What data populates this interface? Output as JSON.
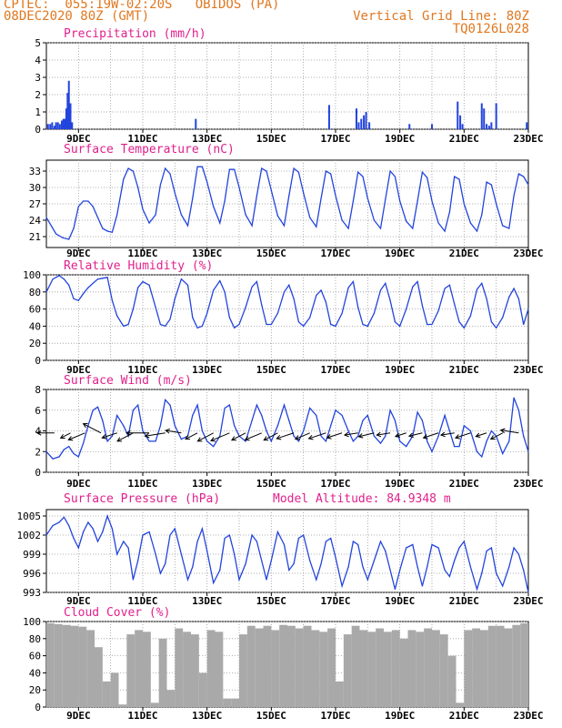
{
  "header": {
    "line1_left": "CPTEC:  055:19W-02:20S   OBIDOS (PA)",
    "line2_left": "08DEC2020 80Z (GMT)",
    "line1_right": "Vertical Grid Line: 80Z",
    "line2_right": "TQ0126L028",
    "model_altitude": "Model Altitude: 84.9348 m"
  },
  "colors": {
    "header": "#e07820",
    "panel_title": "#e0208c",
    "series_line": "#2244dd",
    "cloud_fill": "#a9a9a9",
    "wind_arrow": "#000000"
  },
  "chart_data": [
    {
      "type": "bar",
      "title": "Precipitation (mm/h)",
      "ylim": [
        0,
        5
      ],
      "yticks": [
        "0",
        "1",
        "2",
        "3",
        "4",
        "5"
      ],
      "xticks": [
        "9DEC",
        "11DEC",
        "13DEC",
        "15DEC",
        "17DEC",
        "19DEC",
        "21DEC",
        "23DEC"
      ],
      "x_range_days": [
        8.0,
        23.0
      ],
      "x": [
        8.05,
        8.12,
        8.18,
        8.25,
        8.3,
        8.36,
        8.42,
        8.48,
        8.53,
        8.58,
        8.62,
        8.66,
        8.7,
        8.75,
        8.8,
        12.65,
        16.8,
        17.65,
        17.72,
        17.8,
        17.88,
        17.95,
        18.05,
        19.3,
        20.0,
        20.8,
        20.88,
        20.95,
        21.55,
        21.62,
        21.7,
        21.78,
        21.85,
        22.0,
        22.95
      ],
      "values": [
        0.3,
        0.3,
        0.4,
        0.2,
        0.4,
        0.4,
        0.3,
        0.5,
        0.6,
        0.6,
        1.2,
        2.1,
        2.8,
        1.5,
        0.4,
        0.6,
        1.4,
        1.2,
        0.4,
        0.6,
        0.8,
        1.0,
        0.4,
        0.3,
        0.3,
        1.6,
        0.8,
        0.3,
        1.5,
        1.2,
        0.3,
        0.2,
        0.4,
        1.5,
        0.4
      ],
      "grid": true
    },
    {
      "type": "line",
      "title": "Surface Temperature (nC)",
      "ylim": [
        19,
        35
      ],
      "yticks": [
        "21",
        "24",
        "27",
        "30",
        "33"
      ],
      "xticks": [
        "9DEC",
        "11DEC",
        "13DEC",
        "15DEC",
        "17DEC",
        "19DEC",
        "21DEC",
        "23DEC"
      ],
      "x": [
        8.0,
        8.3,
        8.5,
        8.7,
        8.85,
        9.0,
        9.15,
        9.3,
        9.45,
        9.6,
        9.75,
        9.9,
        10.05,
        10.2,
        10.4,
        10.55,
        10.7,
        10.85,
        11.0,
        11.2,
        11.4,
        11.55,
        11.7,
        11.85,
        12.0,
        12.2,
        12.4,
        12.55,
        12.7,
        12.85,
        13.0,
        13.2,
        13.4,
        13.55,
        13.7,
        13.85,
        14.0,
        14.2,
        14.4,
        14.55,
        14.7,
        14.85,
        15.0,
        15.2,
        15.4,
        15.55,
        15.7,
        15.85,
        16.0,
        16.2,
        16.4,
        16.55,
        16.7,
        16.85,
        17.0,
        17.2,
        17.4,
        17.55,
        17.7,
        17.85,
        18.0,
        18.2,
        18.4,
        18.55,
        18.7,
        18.85,
        19.0,
        19.2,
        19.4,
        19.55,
        19.7,
        19.85,
        20.0,
        20.2,
        20.4,
        20.55,
        20.7,
        20.85,
        21.0,
        21.2,
        21.4,
        21.55,
        21.7,
        21.85,
        22.0,
        22.2,
        22.4,
        22.55,
        22.7,
        22.85,
        23.0
      ],
      "values": [
        24.5,
        21.5,
        20.8,
        20.5,
        22.5,
        26.5,
        27.5,
        27.5,
        26.5,
        24.5,
        22.5,
        22.0,
        21.8,
        25.0,
        31.5,
        33.5,
        33.0,
        30.0,
        26.0,
        23.5,
        25.0,
        30.5,
        33.5,
        32.5,
        29.0,
        25.0,
        23.0,
        28.0,
        33.8,
        33.8,
        31.0,
        26.5,
        23.5,
        27.5,
        33.3,
        33.3,
        30.0,
        25.0,
        23.0,
        28.5,
        33.5,
        33.0,
        29.5,
        24.8,
        23.0,
        28.5,
        33.5,
        32.8,
        29.0,
        24.5,
        22.8,
        28.0,
        33.0,
        32.5,
        28.5,
        24.0,
        22.5,
        27.5,
        32.8,
        32.0,
        28.0,
        24.0,
        22.5,
        27.8,
        33.0,
        32.0,
        27.5,
        23.8,
        22.5,
        27.5,
        32.8,
        31.8,
        27.5,
        23.5,
        22.0,
        25.5,
        32.0,
        31.5,
        27.0,
        23.5,
        22.0,
        25.0,
        31.0,
        30.5,
        27.0,
        23.0,
        22.5,
        28.5,
        32.5,
        32.0,
        30.5
      ],
      "grid": true
    },
    {
      "type": "line",
      "title": "Relative Humidity (%)",
      "ylim": [
        0,
        100
      ],
      "yticks": [
        "0",
        "20",
        "40",
        "60",
        "80",
        "100"
      ],
      "xticks": [
        "9DEC",
        "11DEC",
        "13DEC",
        "15DEC",
        "17DEC",
        "19DEC",
        "21DEC",
        "23DEC"
      ],
      "x": [
        8.0,
        8.2,
        8.4,
        8.55,
        8.7,
        8.85,
        9.0,
        9.15,
        9.3,
        9.45,
        9.6,
        9.75,
        9.9,
        10.05,
        10.2,
        10.4,
        10.55,
        10.7,
        10.85,
        11.0,
        11.2,
        11.4,
        11.55,
        11.7,
        11.85,
        12.0,
        12.2,
        12.4,
        12.55,
        12.7,
        12.85,
        13.0,
        13.2,
        13.4,
        13.55,
        13.7,
        13.85,
        14.0,
        14.2,
        14.4,
        14.55,
        14.7,
        14.85,
        15.0,
        15.2,
        15.4,
        15.55,
        15.7,
        15.85,
        16.0,
        16.2,
        16.4,
        16.55,
        16.7,
        16.85,
        17.0,
        17.2,
        17.4,
        17.55,
        17.7,
        17.85,
        18.0,
        18.2,
        18.4,
        18.55,
        18.7,
        18.85,
        19.0,
        19.2,
        19.4,
        19.55,
        19.7,
        19.85,
        20.0,
        20.2,
        20.4,
        20.55,
        20.7,
        20.85,
        21.0,
        21.2,
        21.4,
        21.55,
        21.7,
        21.85,
        22.0,
        22.2,
        22.4,
        22.55,
        22.7,
        22.85,
        23.0
      ],
      "values": [
        80,
        95,
        99,
        95,
        88,
        72,
        70,
        78,
        85,
        90,
        95,
        96,
        97,
        70,
        52,
        40,
        42,
        60,
        85,
        92,
        88,
        62,
        42,
        40,
        48,
        72,
        95,
        88,
        50,
        38,
        40,
        55,
        82,
        93,
        80,
        50,
        38,
        42,
        62,
        86,
        92,
        65,
        42,
        42,
        55,
        80,
        88,
        72,
        45,
        40,
        50,
        76,
        82,
        68,
        42,
        40,
        55,
        85,
        92,
        62,
        42,
        40,
        55,
        82,
        90,
        70,
        45,
        40,
        60,
        86,
        92,
        64,
        42,
        42,
        58,
        84,
        88,
        66,
        45,
        38,
        52,
        83,
        90,
        72,
        45,
        38,
        50,
        74,
        84,
        72,
        42,
        60
      ],
      "grid": true
    },
    {
      "type": "line",
      "title": "Surface Wind (m/s)",
      "ylim": [
        0,
        8
      ],
      "yticks": [
        "0",
        "2",
        "4",
        "6",
        "8"
      ],
      "xticks": [
        "9DEC",
        "11DEC",
        "13DEC",
        "15DEC",
        "17DEC",
        "19DEC",
        "21DEC",
        "23DEC"
      ],
      "x": [
        8.0,
        8.2,
        8.4,
        8.55,
        8.7,
        8.85,
        9.0,
        9.15,
        9.3,
        9.45,
        9.6,
        9.75,
        9.9,
        10.05,
        10.2,
        10.4,
        10.55,
        10.7,
        10.85,
        11.0,
        11.2,
        11.4,
        11.55,
        11.7,
        11.85,
        12.0,
        12.2,
        12.4,
        12.55,
        12.7,
        12.85,
        13.0,
        13.2,
        13.4,
        13.55,
        13.7,
        13.85,
        14.0,
        14.2,
        14.4,
        14.55,
        14.7,
        14.85,
        15.0,
        15.2,
        15.4,
        15.55,
        15.7,
        15.85,
        16.0,
        16.2,
        16.4,
        16.55,
        16.7,
        16.85,
        17.0,
        17.2,
        17.4,
        17.55,
        17.7,
        17.85,
        18.0,
        18.2,
        18.4,
        18.55,
        18.7,
        18.85,
        19.0,
        19.2,
        19.4,
        19.55,
        19.7,
        19.85,
        20.0,
        20.2,
        20.4,
        20.55,
        20.7,
        20.85,
        21.0,
        21.2,
        21.4,
        21.55,
        21.7,
        21.85,
        22.0,
        22.2,
        22.4,
        22.55,
        22.7,
        22.85,
        23.0
      ],
      "values": [
        2.0,
        1.3,
        1.5,
        2.2,
        2.5,
        1.8,
        1.5,
        2.8,
        4.5,
        6.0,
        6.3,
        5.0,
        3.0,
        3.5,
        5.5,
        4.5,
        3.5,
        6.0,
        6.5,
        4.0,
        3.0,
        3.0,
        4.5,
        7.0,
        6.5,
        4.5,
        3.2,
        3.5,
        5.5,
        6.5,
        4.0,
        3.0,
        2.5,
        3.5,
        6.2,
        6.5,
        4.5,
        3.5,
        3.0,
        5.0,
        6.5,
        5.5,
        4.0,
        3.0,
        4.5,
        6.5,
        5.0,
        3.5,
        3.0,
        4.0,
        6.2,
        5.5,
        3.5,
        3.0,
        4.5,
        6.0,
        5.5,
        4.0,
        3.0,
        3.5,
        5.0,
        5.5,
        3.5,
        2.8,
        3.5,
        6.0,
        5.0,
        3.0,
        2.5,
        3.5,
        5.8,
        5.0,
        3.0,
        2.0,
        3.5,
        5.5,
        4.0,
        2.5,
        2.5,
        4.5,
        4.0,
        2.0,
        1.5,
        3.0,
        4.0,
        3.5,
        1.8,
        3.0,
        7.2,
        6.0,
        3.5,
        2.0
      ],
      "arrows": {
        "x": [
          8.25,
          8.75,
          9.2,
          9.7,
          10.2,
          10.7,
          11.2,
          11.7,
          12.2,
          12.7,
          13.2,
          13.7,
          14.2,
          14.7,
          15.2,
          15.7,
          16.2,
          16.7,
          17.2,
          17.7,
          18.2,
          18.7,
          19.2,
          19.7,
          20.2,
          20.7,
          21.2,
          21.7,
          22.2,
          22.7
        ],
        "speed": [
          3.8,
          2.5,
          4.0,
          4.5,
          3.5,
          4.0,
          5.0,
          4.5,
          3.5,
          3.0,
          4.0,
          4.5,
          3.5,
          4.0,
          3.5,
          4.0,
          3.5,
          4.0,
          3.5,
          3.0,
          3.5,
          3.0,
          2.5,
          3.0,
          3.5,
          3.0,
          3.5,
          2.5,
          3.0,
          4.0
        ],
        "direction_deg": [
          90,
          60,
          65,
          120,
          70,
          60,
          90,
          80,
          100,
          60,
          60,
          65,
          60,
          65,
          60,
          70,
          65,
          70,
          70,
          80,
          75,
          80,
          70,
          75,
          70,
          80,
          70,
          70,
          60,
          100
        ]
      },
      "grid": true
    },
    {
      "type": "line",
      "title": "Surface Pressure (hPa)",
      "ylim": [
        993,
        1006
      ],
      "yticks": [
        "993",
        "996",
        "999",
        "1002",
        "1005"
      ],
      "xticks": [
        "9DEC",
        "11DEC",
        "13DEC",
        "15DEC",
        "17DEC",
        "19DEC",
        "21DEC",
        "23DEC"
      ],
      "x": [
        8.0,
        8.2,
        8.4,
        8.55,
        8.7,
        8.85,
        9.0,
        9.15,
        9.3,
        9.45,
        9.6,
        9.75,
        9.9,
        10.05,
        10.2,
        10.4,
        10.55,
        10.7,
        10.85,
        11.0,
        11.2,
        11.4,
        11.55,
        11.7,
        11.85,
        12.0,
        12.2,
        12.4,
        12.55,
        12.7,
        12.85,
        13.0,
        13.2,
        13.4,
        13.55,
        13.7,
        13.85,
        14.0,
        14.2,
        14.4,
        14.55,
        14.7,
        14.85,
        15.0,
        15.2,
        15.4,
        15.55,
        15.7,
        15.85,
        16.0,
        16.2,
        16.4,
        16.55,
        16.7,
        16.85,
        17.0,
        17.2,
        17.4,
        17.55,
        17.7,
        17.85,
        18.0,
        18.2,
        18.4,
        18.55,
        18.7,
        18.85,
        19.0,
        19.2,
        19.4,
        19.55,
        19.7,
        19.85,
        20.0,
        20.2,
        20.4,
        20.55,
        20.7,
        20.85,
        21.0,
        21.2,
        21.4,
        21.55,
        21.7,
        21.85,
        22.0,
        22.2,
        22.4,
        22.55,
        22.7,
        22.85,
        23.0
      ],
      "values": [
        1002.0,
        1003.5,
        1004.0,
        1004.8,
        1003.5,
        1001.5,
        1000.0,
        1002.5,
        1004.0,
        1003.0,
        1001.0,
        1002.5,
        1005.0,
        1003.0,
        999.0,
        1001.0,
        1000.0,
        995.0,
        998.0,
        1002.0,
        1002.5,
        999.0,
        996.0,
        997.5,
        1002.0,
        1003.0,
        999.0,
        995.0,
        997.0,
        1001.0,
        1003.0,
        999.5,
        994.5,
        996.5,
        1001.5,
        1002.0,
        999.0,
        995.0,
        997.5,
        1002.0,
        1001.0,
        998.0,
        995.0,
        998.0,
        1002.5,
        1000.5,
        996.5,
        997.5,
        1001.5,
        1002.0,
        998.0,
        995.0,
        997.5,
        1001.0,
        1001.5,
        998.5,
        994.0,
        997.0,
        1001.0,
        1000.5,
        997.0,
        995.0,
        998.0,
        1001.0,
        999.5,
        996.5,
        993.5,
        996.5,
        1000.0,
        1000.5,
        997.0,
        994.0,
        997.0,
        1000.5,
        1000.0,
        996.5,
        995.5,
        998.0,
        1000.0,
        1001.0,
        997.0,
        993.5,
        996.0,
        999.5,
        1000.0,
        996.0,
        994.0,
        997.0,
        1000.0,
        999.0,
        996.5,
        993.0
      ],
      "grid": true
    },
    {
      "type": "bar",
      "title": "Cloud Cover (%)",
      "ylim": [
        0,
        100
      ],
      "yticks": [
        "0",
        "20",
        "40",
        "60",
        "80",
        "100"
      ],
      "xticks": [
        "9DEC",
        "11DEC",
        "13DEC",
        "15DEC",
        "17DEC",
        "19DEC",
        "21DEC",
        "23DEC"
      ],
      "x": [
        8.0,
        8.25,
        8.5,
        8.75,
        9.0,
        9.25,
        9.5,
        9.75,
        10.0,
        10.25,
        10.5,
        10.75,
        11.0,
        11.25,
        11.5,
        11.75,
        12.0,
        12.25,
        12.5,
        12.75,
        13.0,
        13.25,
        13.5,
        13.75,
        14.0,
        14.25,
        14.5,
        14.75,
        15.0,
        15.25,
        15.5,
        15.75,
        16.0,
        16.25,
        16.5,
        16.75,
        17.0,
        17.25,
        17.5,
        17.75,
        18.0,
        18.25,
        18.5,
        18.75,
        19.0,
        19.25,
        19.5,
        19.75,
        20.0,
        20.25,
        20.5,
        20.75,
        21.0,
        21.25,
        21.5,
        21.75,
        22.0,
        22.25,
        22.5,
        22.75
      ],
      "values": [
        98,
        97,
        96,
        95,
        94,
        90,
        70,
        30,
        40,
        3,
        85,
        90,
        88,
        5,
        80,
        20,
        92,
        88,
        85,
        40,
        90,
        88,
        10,
        10,
        85,
        95,
        92,
        95,
        90,
        96,
        95,
        92,
        95,
        90,
        88,
        92,
        30,
        85,
        95,
        90,
        88,
        92,
        88,
        90,
        80,
        90,
        88,
        92,
        90,
        85,
        60,
        5,
        90,
        92,
        90,
        95,
        95,
        92,
        96,
        98
      ],
      "grid": true
    }
  ]
}
